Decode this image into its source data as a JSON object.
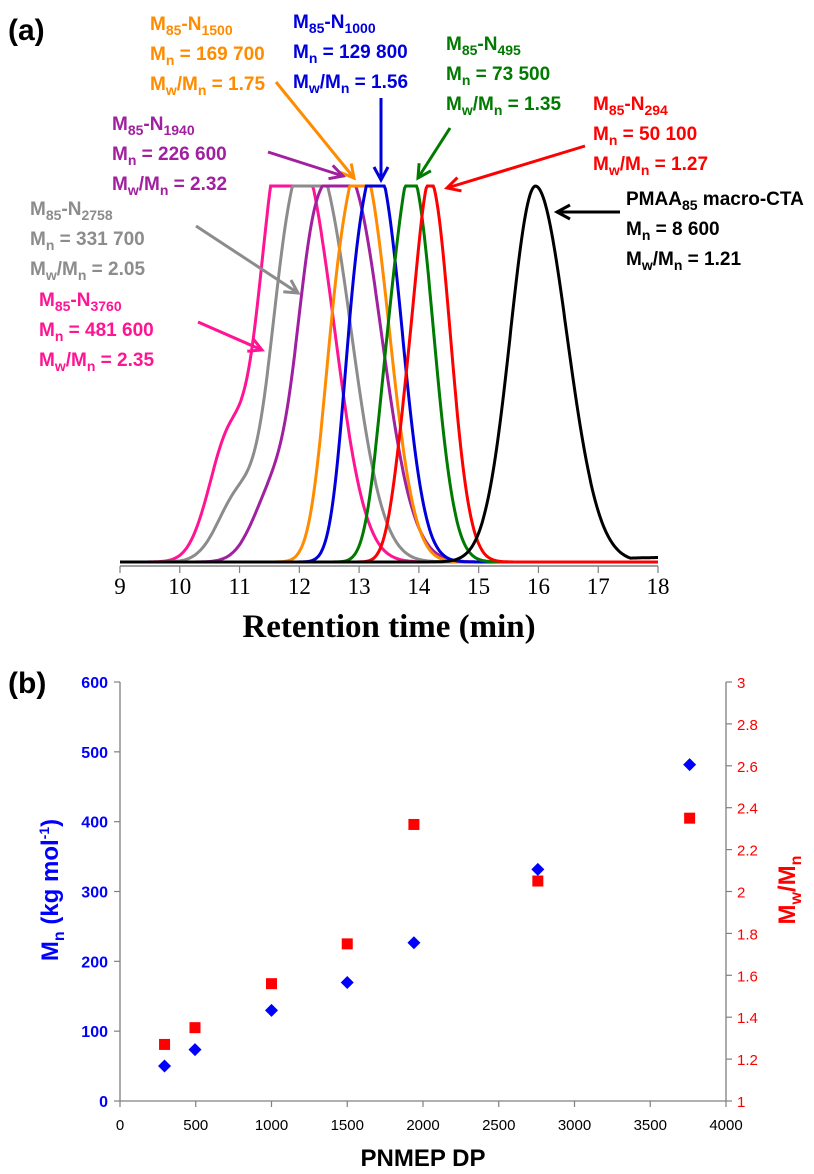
{
  "panel_labels": {
    "a": "(a)",
    "b": "(b)"
  },
  "chart_data": [
    {
      "type": "line",
      "panel": "(a)",
      "title": "",
      "xlabel": "Retention time (min)",
      "ylabel": "",
      "xlim": [
        9,
        18
      ],
      "xticks": [
        "9",
        "10",
        "11",
        "12",
        "13",
        "14",
        "15",
        "16",
        "17",
        "18"
      ],
      "grid": false,
      "series": [
        {
          "key": "n3760",
          "color": "#ff1493",
          "peak": 12.1,
          "width": 0.4,
          "baseline": 0.0,
          "shoulders": [
            [
              11.55,
              0.6,
              0.28
            ],
            [
              10.85,
              0.34,
              0.35
            ]
          ]
        },
        {
          "key": "n2758",
          "color": "#8c8c8c",
          "peak": 12.35,
          "width": 0.42,
          "baseline": 0.0,
          "shoulders": [
            [
              11.75,
              0.5,
              0.3
            ],
            [
              11.0,
              0.18,
              0.35
            ]
          ]
        },
        {
          "key": "n1940",
          "color": "#a020a0",
          "peak": 12.85,
          "width": 0.42,
          "baseline": 0.0,
          "shoulders": [
            [
              12.2,
              0.55,
              0.28
            ],
            [
              11.6,
              0.2,
              0.35
            ]
          ]
        },
        {
          "key": "n1500",
          "color": "#ff8c00",
          "peak": 13.1,
          "width": 0.33,
          "baseline": 0.0,
          "shoulders": [
            [
              12.6,
              0.42,
              0.25
            ]
          ]
        },
        {
          "key": "n1000",
          "color": "#0000dd",
          "peak": 13.35,
          "width": 0.3,
          "baseline": 0.0,
          "shoulders": [
            [
              12.9,
              0.42,
              0.22
            ]
          ]
        },
        {
          "key": "n495",
          "color": "#007a00",
          "peak": 13.9,
          "width": 0.28,
          "baseline": 0.0,
          "shoulders": [
            [
              13.45,
              0.3,
              0.22
            ]
          ]
        },
        {
          "key": "n294",
          "color": "#ff0000",
          "peak": 14.2,
          "width": 0.26,
          "baseline": 0.0,
          "shoulders": [
            [
              13.75,
              0.22,
              0.2
            ]
          ]
        },
        {
          "key": "macro",
          "color": "#000000",
          "peak": 15.95,
          "width": 0.42,
          "baseline": 0.012,
          "shoulders": []
        }
      ]
    },
    {
      "type": "scatter",
      "panel": "(b)",
      "title": "",
      "xlabel": "PNMEP DP",
      "ylabel_left": "Mₙ (kg mol⁻¹)",
      "ylabel_right": "M_w/M_n",
      "xlim": [
        0,
        4000
      ],
      "ylim_left": [
        0,
        600
      ],
      "ylim_right": [
        1,
        3
      ],
      "xticks": [
        "0",
        "500",
        "1000",
        "1500",
        "2000",
        "2500",
        "3000",
        "3500",
        "4000"
      ],
      "yticks_left": [
        "0",
        "100",
        "200",
        "300",
        "400",
        "500",
        "600"
      ],
      "yticks_right": [
        "1",
        "1.2",
        "1.4",
        "1.6",
        "1.8",
        "2",
        "2.2",
        "2.4",
        "2.6",
        "2.8",
        "3"
      ],
      "grid": false,
      "series": [
        {
          "axis": "left",
          "marker": "diamond",
          "color": "#0000ff",
          "x": [
            294,
            495,
            1000,
            1500,
            1940,
            2758,
            3760
          ],
          "y": [
            50.1,
            73.5,
            129.8,
            169.7,
            226.6,
            331.7,
            481.6
          ]
        },
        {
          "axis": "right",
          "marker": "square",
          "color": "#ff0000",
          "x": [
            294,
            495,
            1000,
            1500,
            1940,
            2758,
            3760
          ],
          "y": [
            1.27,
            1.35,
            1.56,
            1.75,
            2.32,
            2.05,
            2.35
          ]
        }
      ]
    }
  ],
  "annotations": [
    {
      "key": "n1500",
      "color": "#ff8c00",
      "sample": {
        "base": "M",
        "s1": "85",
        "mid": "-N",
        "s2": "1500"
      },
      "mn": "M",
      "mn_sub": "n",
      "mn_val": " = 169 700",
      "mw": "M",
      "mw_sub": "w",
      "mw_slash": "/M",
      "mw_sub2": "n",
      "mw_val": " = 1.75"
    },
    {
      "key": "n1000",
      "color": "#0000dd",
      "sample": {
        "base": "M",
        "s1": "85",
        "mid": "-N",
        "s2": "1000"
      },
      "mn": "M",
      "mn_sub": "n",
      "mn_val": " = 129 800",
      "mw": "M",
      "mw_sub": "w",
      "mw_slash": "/M",
      "mw_sub2": "n",
      "mw_val": " = 1.56"
    },
    {
      "key": "n495",
      "color": "#007a00",
      "sample": {
        "base": "M",
        "s1": "85",
        "mid": "-N",
        "s2": "495"
      },
      "mn": "M",
      "mn_sub": "n",
      "mn_val": " = 73 500",
      "mw": "M",
      "mw_sub": "w",
      "mw_slash": "/M",
      "mw_sub2": "n",
      "mw_val": " = 1.35"
    },
    {
      "key": "n294",
      "color": "#ff0000",
      "sample": {
        "base": "M",
        "s1": "85",
        "mid": "-N",
        "s2": "294"
      },
      "mn": "M",
      "mn_sub": "n",
      "mn_val": " = 50 100",
      "mw": "M",
      "mw_sub": "w",
      "mw_slash": "/M",
      "mw_sub2": "n",
      "mw_val": " = 1.27"
    },
    {
      "key": "n1940",
      "color": "#a020a0",
      "sample": {
        "base": "M",
        "s1": "85",
        "mid": "-N",
        "s2": "1940"
      },
      "mn": "M",
      "mn_sub": "n",
      "mn_val": " = 226 600",
      "mw": "M",
      "mw_sub": "w",
      "mw_slash": "/M",
      "mw_sub2": "n",
      "mw_val": " = 2.32"
    },
    {
      "key": "macro",
      "color": "#000000",
      "sample": {
        "base": "PMAA",
        "s1": "85",
        "mid": " macro-CTA",
        "s2": ""
      },
      "mn": "M",
      "mn_sub": "n",
      "mn_val": " = 8 600",
      "mw": "M",
      "mw_sub": "w",
      "mw_slash": "/M",
      "mw_sub2": "n",
      "mw_val": " = 1.21"
    },
    {
      "key": "n2758",
      "color": "#8c8c8c",
      "sample": {
        "base": "M",
        "s1": "85",
        "mid": "-N",
        "s2": "2758"
      },
      "mn": "M",
      "mn_sub": "n",
      "mn_val": " = 331 700",
      "mw": "M",
      "mw_sub": "w",
      "mw_slash": "/M",
      "mw_sub2": "n",
      "mw_val": " = 2.05"
    },
    {
      "key": "n3760",
      "color": "#ff1493",
      "sample": {
        "base": "M",
        "s1": "85",
        "mid": "-N",
        "s2": "3760"
      },
      "mn": "M",
      "mn_sub": "n",
      "mn_val": " = 481 600",
      "mw": "M",
      "mw_sub": "w",
      "mw_slash": "/M",
      "mw_sub2": "n",
      "mw_val": " = 2.35"
    }
  ]
}
